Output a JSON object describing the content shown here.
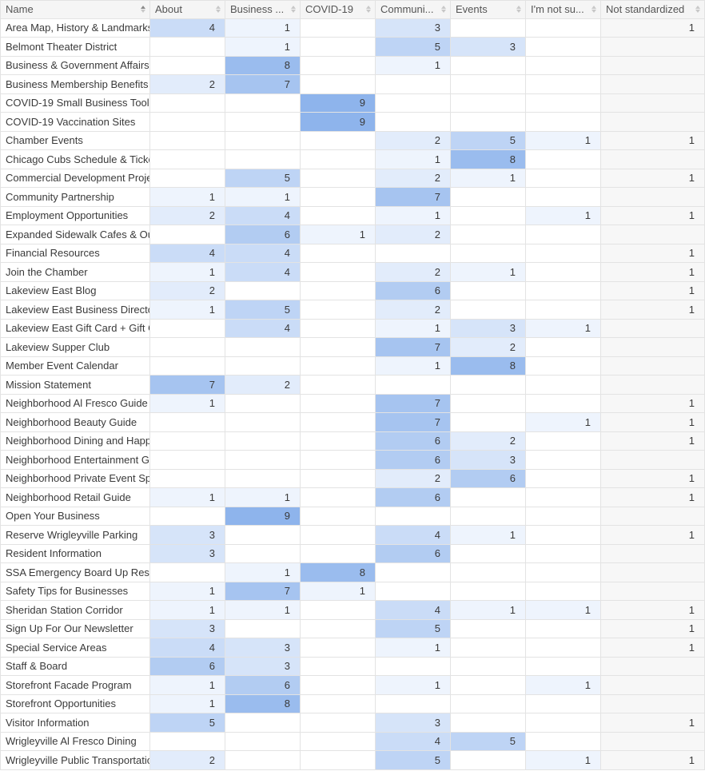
{
  "table": {
    "columns": [
      {
        "label": "Name",
        "sorted": true
      },
      {
        "label": "About",
        "sorted": false
      },
      {
        "label": "Business ...",
        "sorted": false
      },
      {
        "label": "COVID-19",
        "sorted": false
      },
      {
        "label": "Communi...",
        "sorted": false
      },
      {
        "label": "Events",
        "sorted": false
      },
      {
        "label": "I'm not su...",
        "sorted": false
      },
      {
        "label": "Not standardized",
        "sorted": false
      }
    ],
    "max_value": 9,
    "heat_color_low": "#eef4fd",
    "heat_color_high": "#8eb4ec",
    "rows": [
      {
        "name": "Area Map, History & Landmarks",
        "values": [
          4,
          1,
          null,
          3,
          null,
          null,
          1
        ]
      },
      {
        "name": "Belmont Theater District",
        "values": [
          null,
          1,
          null,
          5,
          3,
          null,
          null
        ]
      },
      {
        "name": "Business & Government Affairs",
        "values": [
          null,
          8,
          null,
          1,
          null,
          null,
          null
        ]
      },
      {
        "name": "Business Membership Benefits",
        "values": [
          2,
          7,
          null,
          null,
          null,
          null,
          null
        ]
      },
      {
        "name": "COVID-19 Small Business Toolkit",
        "values": [
          null,
          null,
          9,
          null,
          null,
          null,
          null
        ]
      },
      {
        "name": "COVID-19 Vaccination Sites",
        "values": [
          null,
          null,
          9,
          null,
          null,
          null,
          null
        ]
      },
      {
        "name": "Chamber Events",
        "values": [
          null,
          null,
          null,
          2,
          5,
          1,
          1
        ]
      },
      {
        "name": "Chicago Cubs Schedule & Tickets",
        "values": [
          null,
          null,
          null,
          1,
          8,
          null,
          null
        ]
      },
      {
        "name": "Commercial Development Projects",
        "values": [
          null,
          5,
          null,
          2,
          1,
          null,
          1
        ]
      },
      {
        "name": "Community Partnership",
        "values": [
          1,
          1,
          null,
          7,
          null,
          null,
          null
        ]
      },
      {
        "name": "Employment Opportunities",
        "values": [
          2,
          4,
          null,
          1,
          null,
          1,
          1
        ]
      },
      {
        "name": "Expanded Sidewalk Cafes & Outdoor Dining",
        "values": [
          null,
          6,
          1,
          2,
          null,
          null,
          null
        ]
      },
      {
        "name": "Financial Resources",
        "values": [
          4,
          4,
          null,
          null,
          null,
          null,
          1
        ]
      },
      {
        "name": "Join the Chamber",
        "values": [
          1,
          4,
          null,
          2,
          1,
          null,
          1
        ]
      },
      {
        "name": "Lakeview East Blog",
        "values": [
          2,
          null,
          null,
          6,
          null,
          null,
          1
        ]
      },
      {
        "name": "Lakeview East Business Directory",
        "values": [
          1,
          5,
          null,
          2,
          null,
          null,
          1
        ]
      },
      {
        "name": "Lakeview East Gift Card + Gift Guide",
        "values": [
          null,
          4,
          null,
          1,
          3,
          1,
          null
        ]
      },
      {
        "name": "Lakeview Supper Club",
        "values": [
          null,
          null,
          null,
          7,
          2,
          null,
          null
        ]
      },
      {
        "name": "Member Event Calendar",
        "values": [
          null,
          null,
          null,
          1,
          8,
          null,
          null
        ]
      },
      {
        "name": "Mission Statement",
        "values": [
          7,
          2,
          null,
          null,
          null,
          null,
          null
        ]
      },
      {
        "name": "Neighborhood Al Fresco Guide",
        "values": [
          1,
          null,
          null,
          7,
          null,
          null,
          1
        ]
      },
      {
        "name": "Neighborhood Beauty Guide",
        "values": [
          null,
          null,
          null,
          7,
          null,
          1,
          1
        ]
      },
      {
        "name": "Neighborhood Dining and Happy Hours",
        "values": [
          null,
          null,
          null,
          6,
          2,
          null,
          1
        ]
      },
      {
        "name": "Neighborhood Entertainment Guide",
        "values": [
          null,
          null,
          null,
          6,
          3,
          null,
          null
        ]
      },
      {
        "name": "Neighborhood Private Event Spaces",
        "values": [
          null,
          null,
          null,
          2,
          6,
          null,
          1
        ]
      },
      {
        "name": "Neighborhood Retail Guide",
        "values": [
          1,
          1,
          null,
          6,
          null,
          null,
          1
        ]
      },
      {
        "name": "Open Your Business",
        "values": [
          null,
          9,
          null,
          null,
          null,
          null,
          null
        ]
      },
      {
        "name": "Reserve Wrigleyville Parking",
        "values": [
          3,
          null,
          null,
          4,
          1,
          null,
          1
        ]
      },
      {
        "name": "Resident Information",
        "values": [
          3,
          null,
          null,
          6,
          null,
          null,
          null
        ]
      },
      {
        "name": "SSA Emergency Board Up Resources",
        "values": [
          null,
          1,
          8,
          null,
          null,
          null,
          null
        ]
      },
      {
        "name": "Safety Tips for Businesses",
        "values": [
          1,
          7,
          1,
          null,
          null,
          null,
          null
        ]
      },
      {
        "name": "Sheridan Station Corridor",
        "values": [
          1,
          1,
          null,
          4,
          1,
          1,
          1
        ]
      },
      {
        "name": "Sign Up For Our Newsletter",
        "values": [
          3,
          null,
          null,
          5,
          null,
          null,
          1
        ]
      },
      {
        "name": "Special Service Areas",
        "values": [
          4,
          3,
          null,
          1,
          null,
          null,
          1
        ]
      },
      {
        "name": "Staff & Board",
        "values": [
          6,
          3,
          null,
          null,
          null,
          null,
          null
        ]
      },
      {
        "name": "Storefront Facade Program",
        "values": [
          1,
          6,
          null,
          1,
          null,
          1,
          null
        ]
      },
      {
        "name": "Storefront Opportunities",
        "values": [
          1,
          8,
          null,
          null,
          null,
          null,
          null
        ]
      },
      {
        "name": "Visitor Information",
        "values": [
          5,
          null,
          null,
          3,
          null,
          null,
          1
        ]
      },
      {
        "name": "Wrigleyville Al Fresco Dining",
        "values": [
          null,
          null,
          null,
          4,
          5,
          null,
          null
        ]
      },
      {
        "name": "Wrigleyville Public Transportation",
        "values": [
          2,
          null,
          null,
          5,
          null,
          1,
          1
        ]
      }
    ]
  }
}
